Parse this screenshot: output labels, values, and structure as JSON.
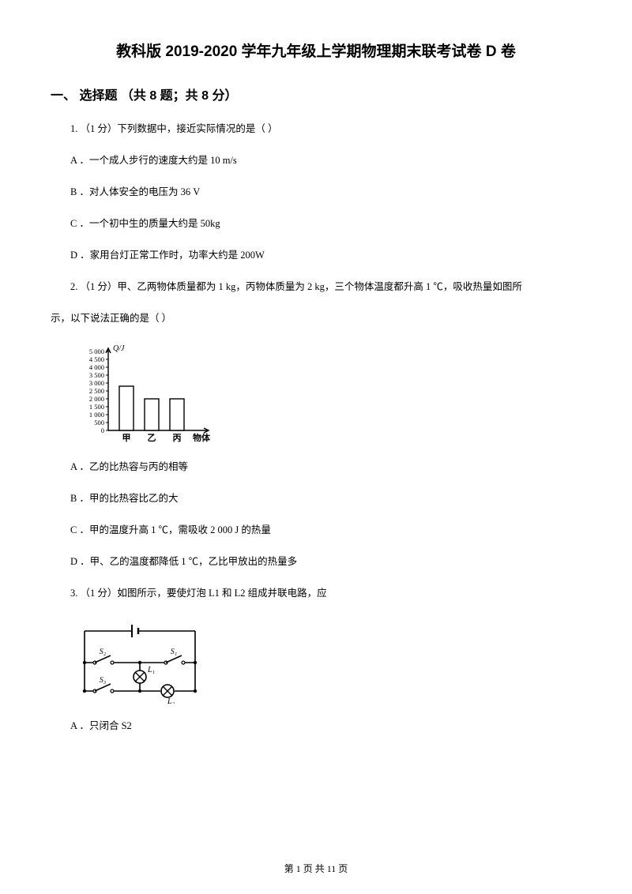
{
  "title": "教科版 2019-2020 学年九年级上学期物理期末联考试卷 D 卷",
  "section": "一、 选择题  （共 8 题；共 8 分）",
  "q1": {
    "stem": "1.  （1 分）下列数据中，接近实际情况的是（       ）",
    "A": "A ．一个成人步行的速度大约是 10 m/s",
    "B": "B ．对人体安全的电压为 36 V",
    "C": "C ．一个初中生的质量大约是 50kg",
    "D": "D ．家用台灯正常工作时，功率大约是 200W"
  },
  "q2": {
    "stem_a": "2.  （1 分）甲、乙两物体质量都为 1  kg，丙物体质量为 2  kg，三个物体温度都升高 1  ℃，吸收热量如图所",
    "stem_b": "示，以下说法正确的是（       ）",
    "A": "A ．乙的比热容与丙的相等",
    "B": "B ．甲的比热容比乙的大",
    "C": "C ．甲的温度升高 1 ℃，需吸收 2 000 J 的热量",
    "D": "D ．甲、乙的温度都降低 1 ℃，乙比甲放出的热量多",
    "chart": {
      "type": "bar",
      "ylabel": "Q/J",
      "yticks": [
        "0",
        "500",
        "1 000",
        "1 500",
        "2 000",
        "2 500",
        "3 000",
        "3 500",
        "4 000",
        "4 500",
        "5 000"
      ],
      "yvalues": [
        0,
        500,
        1000,
        1500,
        2000,
        2500,
        3000,
        3500,
        4000,
        4500,
        5000
      ],
      "categories": [
        "甲",
        "乙",
        "丙"
      ],
      "values": [
        2800,
        2000,
        2000
      ],
      "xlabel_right": "物体",
      "bar_fill": "#ffffff",
      "bar_stroke": "#000000",
      "axis_stroke": "#000000",
      "font_size": 11,
      "ylim": [
        0,
        5000
      ]
    }
  },
  "q3": {
    "stem": "3.  （1 分）如图所示，要使灯泡 L1 和 L2 组成并联电路，应",
    "A": "A ．只闭合 S2",
    "circuit": {
      "labels": {
        "s1": "S₁",
        "s2": "S₂",
        "s3": "S₃",
        "l1": "L₁",
        "l2": "L₂"
      },
      "stroke": "#000000",
      "fill_bulb": "#ffffff"
    }
  },
  "footer": "第  1  页 共  11  页"
}
